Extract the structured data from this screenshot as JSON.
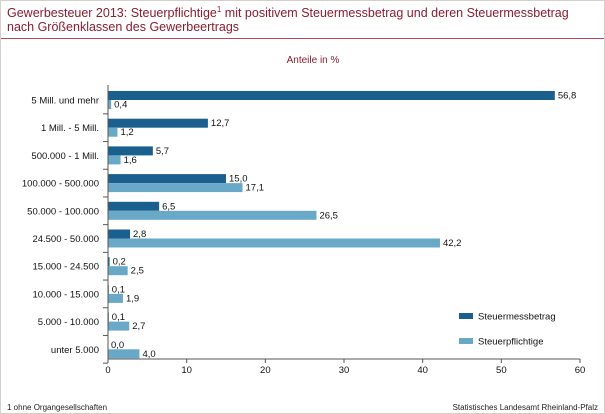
{
  "header": {
    "title_part1": "Gewerbesteuer 2013: Steuerpflichtige",
    "title_sup": "1",
    "title_part2": " mit positivem Steuermessbetrag und deren Steuermessbetrag nach Größenklassen des Gewerbeertrags"
  },
  "footer": {
    "footnote": "1 ohne Organgesellschaften",
    "source": "Statistisches Landesamt Rheinland-Pfalz"
  },
  "colors": {
    "steuermessbetrag": "#1a5f8e",
    "steuerpflichtige": "#6aa8c8"
  },
  "chart_data": {
    "type": "bar",
    "orientation": "horizontal",
    "subtitle": "Anteile in %",
    "categories": [
      "5 Mill. und mehr",
      "1 Mill. - 5 Mill.",
      "500.000 - 1 Mill.",
      "100.000 - 500.000",
      "50.000 - 100.000",
      "24.500 - 50.000",
      "15.000 - 24.500",
      "10.000 - 15.000",
      "5.000 - 10.000",
      "unter 5.000"
    ],
    "series": [
      {
        "name": "Steuermessbetrag",
        "values": [
          56.8,
          12.7,
          5.7,
          15.0,
          6.5,
          2.8,
          0.2,
          0.1,
          0.1,
          0.0
        ],
        "labels": [
          "56,8",
          "12,7",
          "5,7",
          "15,0",
          "6,5",
          "2,8",
          "0,2",
          "0,1",
          "0,1",
          "0,0"
        ]
      },
      {
        "name": "Steuerpflichtige",
        "values": [
          0.4,
          1.2,
          1.6,
          17.1,
          26.5,
          42.2,
          2.5,
          1.9,
          2.7,
          4.0
        ],
        "labels": [
          "0,4",
          "1,2",
          "1,6",
          "17,1",
          "26,5",
          "42,2",
          "2,5",
          "1,9",
          "2,7",
          "4,0"
        ]
      }
    ],
    "xlim": [
      0,
      60
    ],
    "xticks": [
      0,
      10,
      20,
      30,
      40,
      50,
      60
    ],
    "grid": false,
    "legend_position": "right"
  }
}
